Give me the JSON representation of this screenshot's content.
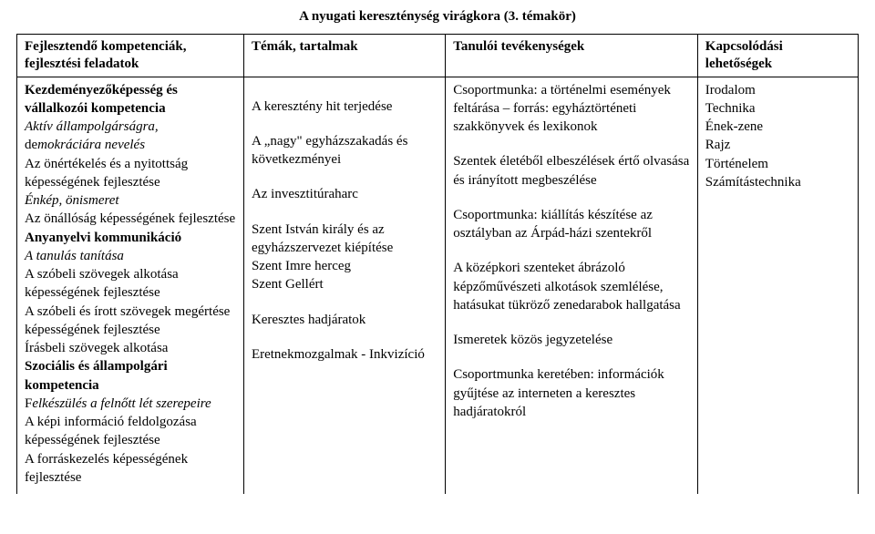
{
  "title": "A nyugati kereszténység virágkora (3. témakör)",
  "headers": {
    "col1": "Fejlesztendő kompetenciák, fejlesztési feladatok",
    "col2": "Témák, tartalmak",
    "col3": "Tanulói tevékenységek",
    "col4a": "Kapcsolódási",
    "col4b": "lehetőségek"
  },
  "col1": {
    "l1": "Kezdeményezőképesség és vállalkozói kompetencia",
    "l2a": "Aktív állampolgárságra,",
    "l2b_pre": "de",
    "l2b": "mokráciára nevelés",
    "l3": "Az önértékelés és a nyitottság képességének fejlesztése",
    "l4": "Énkép, önismeret",
    "l5": "Az önállóság képességének fejlesztése",
    "l6": "Anyanyelvi kommunikáció",
    "l7": "A tanulás tanítása",
    "l8": "A szóbeli szövegek alkotása képességének fejlesztése",
    "l9": "A szóbeli és írott szövegek megértése képességének fejlesztése",
    "l10": "Írásbeli szövegek alkotása",
    "l11": "Szociális és állampolgári kompetencia",
    "l12_pre": "F",
    "l12": "elkészülés a felnőtt lét szerepeire",
    "l13": "A képi információ feldolgozása képességének fejlesztése",
    "l14": "A forráskezelés képességének fejlesztése"
  },
  "col2": {
    "t1": "A keresztény hit terjedése",
    "t2": "A „nagy\" egyházszakadás és következményei",
    "t3": "Az invesztitúraharc",
    "t4a": "Szent István király és az egyházszervezet kiépítése",
    "t4b": "Szent Imre herceg",
    "t4c": "Szent Gellért",
    "t5": "Keresztes hadjáratok",
    "t6": "Eretnekmozgalmak - Inkvizíció"
  },
  "col3": {
    "p1": "Csoportmunka: a történelmi események feltárása – forrás: egyháztörténeti szakkönyvek és lexikonok",
    "p2": "Szentek életéből elbeszélések értő olvasása és irányított megbeszélése",
    "p3": "Csoportmunka: kiállítás készítése az osztályban az Árpád-házi szentekről",
    "p4": "A középkori szenteket ábrázoló képzőművészeti alkotások szemlélése, hatásukat tükröző zenedarabok hallgatása",
    "p5": "Ismeretek közös jegyzetelése",
    "p6": "Csoportmunka keretében: információk gyűjtése az interneten a keresztes hadjáratokról"
  },
  "col4": {
    "s1": "Irodalom",
    "s2": "Technika",
    "s3": "Ének-zene",
    "s4": "Rajz",
    "s5": "Történelem",
    "s6": "Számítástechnika"
  }
}
